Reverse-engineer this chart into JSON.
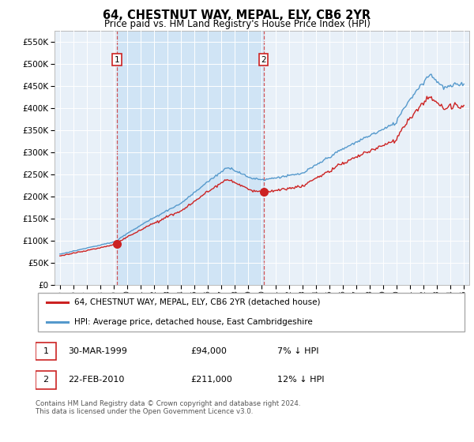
{
  "title": "64, CHESTNUT WAY, MEPAL, ELY, CB6 2YR",
  "subtitle": "Price paid vs. HM Land Registry's House Price Index (HPI)",
  "legend_line1": "64, CHESTNUT WAY, MEPAL, ELY, CB6 2YR (detached house)",
  "legend_line2": "HPI: Average price, detached house, East Cambridgeshire",
  "table_row1_date": "30-MAR-1999",
  "table_row1_price": "£94,000",
  "table_row1_hpi": "7% ↓ HPI",
  "table_row2_date": "22-FEB-2010",
  "table_row2_price": "£211,000",
  "table_row2_hpi": "12% ↓ HPI",
  "footer": "Contains HM Land Registry data © Crown copyright and database right 2024.\nThis data is licensed under the Open Government Licence v3.0.",
  "hpi_color": "#5599cc",
  "price_color": "#cc2222",
  "shade_color": "#d0e4f5",
  "background_color": "#e8f0f8",
  "marker1_x": 1999.25,
  "marker1_y": 94000,
  "marker2_x": 2010.12,
  "marker2_y": 211000,
  "vline1_x": 1999.25,
  "vline2_x": 2010.12,
  "ylim": [
    0,
    575000
  ],
  "xlim_start": 1994.6,
  "xlim_end": 2025.4
}
